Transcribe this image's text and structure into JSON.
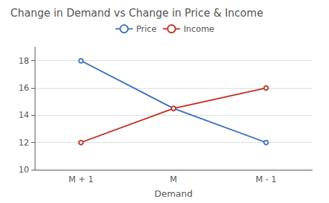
{
  "chart_data": {
    "type": "line",
    "title": "Change in Demand vs Change in Price & Income",
    "xlabel": "Demand",
    "categories": [
      "M + 1",
      "M",
      "M - 1"
    ],
    "series": [
      {
        "name": "Price",
        "color": "#4472C4",
        "values": [
          18,
          14.5,
          12
        ]
      },
      {
        "name": "Income",
        "color": "#C0392B",
        "values": [
          12,
          14.5,
          16
        ]
      }
    ],
    "ylim": [
      10,
      19
    ],
    "yticks": [
      10,
      12,
      14,
      16,
      18
    ],
    "grid": true,
    "legend": "top"
  }
}
